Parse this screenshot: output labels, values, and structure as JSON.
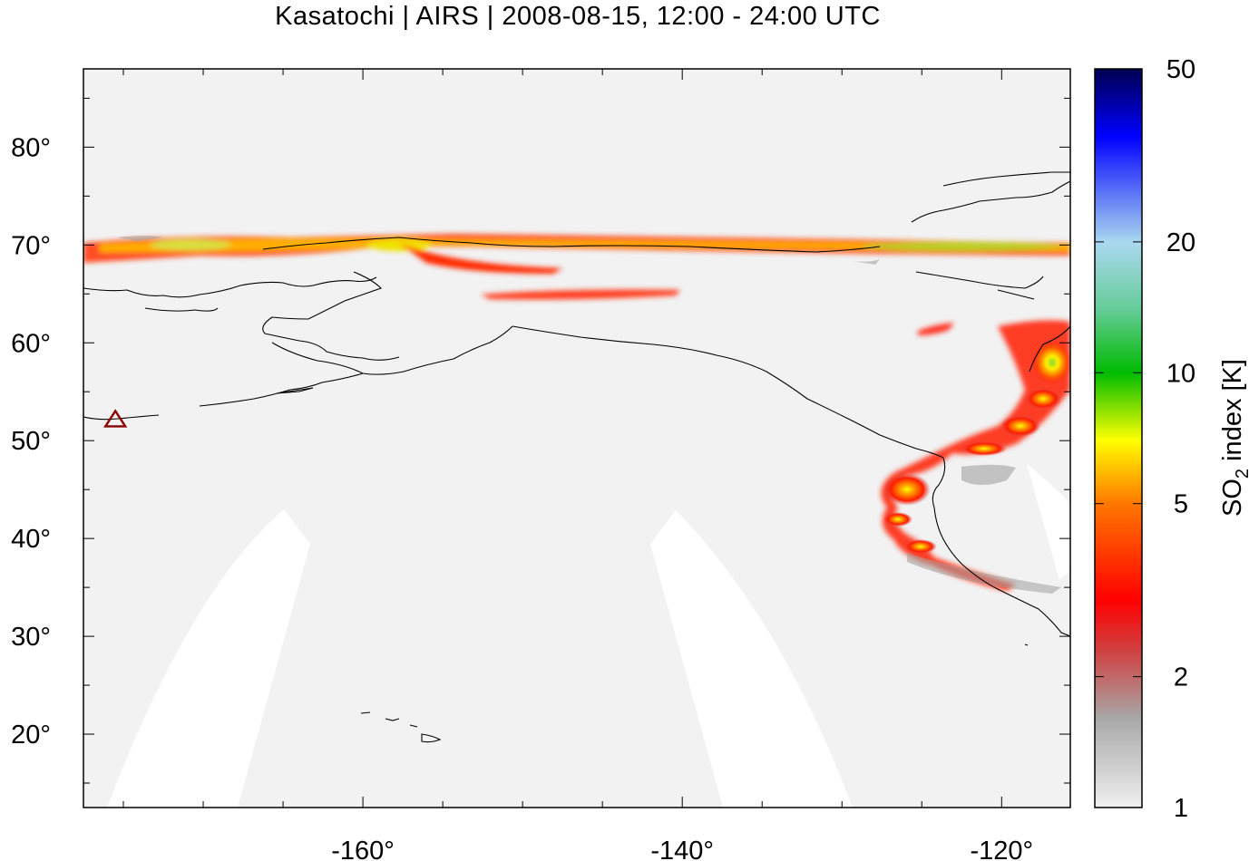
{
  "title": "Kasatochi | AIRS | 2008-08-15, 12:00 - 24:00 UTC",
  "map": {
    "background_color": "#f2f2f2",
    "no_data_color": "#ffffff",
    "coastline_color": "#000000",
    "lon_range": [
      -177.5,
      -115.7
    ],
    "lat_range": [
      12.5,
      88.0
    ],
    "lon_ticks": [
      {
        "value": -160,
        "label": "-160°"
      },
      {
        "value": -140,
        "label": "-140°"
      },
      {
        "value": -120,
        "label": "-120°"
      }
    ],
    "lat_ticks": [
      {
        "value": 80,
        "label": "80°"
      },
      {
        "value": 70,
        "label": "70°"
      },
      {
        "value": 60,
        "label": "60°"
      },
      {
        "value": 50,
        "label": "50°"
      },
      {
        "value": 40,
        "label": "40°"
      },
      {
        "value": 30,
        "label": "30°"
      },
      {
        "value": 20,
        "label": "20°"
      }
    ],
    "volcano_marker": {
      "name": "Kasatochi",
      "lon": -175.5,
      "lat": 52.2,
      "symbol": "triangle",
      "color": "#8b0000"
    }
  },
  "colorbar": {
    "label_main": "SO",
    "label_sub": "2",
    "label_rest": " index [K]",
    "scale": "log",
    "range": [
      1,
      50
    ],
    "ticks": [
      {
        "value": 1,
        "label": "1"
      },
      {
        "value": 2,
        "label": "2"
      },
      {
        "value": 5,
        "label": "5"
      },
      {
        "value": 10,
        "label": "10"
      },
      {
        "value": 20,
        "label": "20"
      },
      {
        "value": 50,
        "label": "50"
      }
    ],
    "stops": [
      {
        "value": 1,
        "color": "#f0f0f0"
      },
      {
        "value": 1.6,
        "color": "#a8a8a8"
      },
      {
        "value": 2.3,
        "color": "#d04040"
      },
      {
        "value": 3,
        "color": "#ff0000"
      },
      {
        "value": 5,
        "color": "#ff7700"
      },
      {
        "value": 7,
        "color": "#ffff00"
      },
      {
        "value": 10,
        "color": "#00bb00"
      },
      {
        "value": 14,
        "color": "#66cc99"
      },
      {
        "value": 20,
        "color": "#aad8f0"
      },
      {
        "value": 35,
        "color": "#0000ff"
      },
      {
        "value": 50,
        "color": "#000050"
      }
    ]
  }
}
